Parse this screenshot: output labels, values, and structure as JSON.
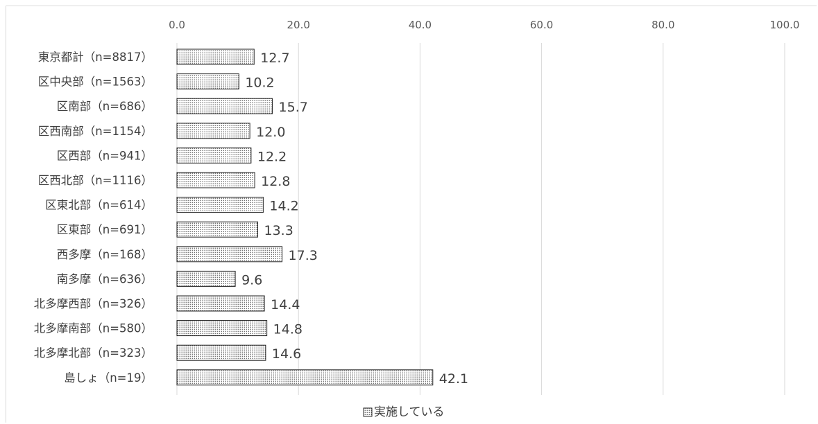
{
  "chart_data": {
    "type": "bar",
    "orientation": "horizontal",
    "categories": [
      "東京都計（n=8817）",
      "区中央部（n=1563）",
      "区南部（n=686）",
      "区西南部（n=1154）",
      "区西部（n=941）",
      "区西北部（n=1116）",
      "区東北部（n=614）",
      "区東部（n=691）",
      "西多摩（n=168）",
      "南多摩（n=636）",
      "北多摩西部（n=326）",
      "北多摩南部（n=580）",
      "北多摩北部（n=323）",
      "島しょ（n=19）"
    ],
    "series": [
      {
        "name": "実施している",
        "values": [
          12.7,
          10.2,
          15.7,
          12.0,
          12.2,
          12.8,
          14.2,
          13.3,
          17.3,
          9.6,
          14.4,
          14.8,
          14.6,
          42.1
        ],
        "labels": [
          "12.7",
          "10.2",
          "15.7",
          "12.0",
          "12.2",
          "12.8",
          "14.2",
          "13.3",
          "17.3",
          "9.6",
          "14.4",
          "14.8",
          "14.6",
          "42.1"
        ]
      }
    ],
    "xlim": [
      0,
      100
    ],
    "ticks": [
      0,
      20,
      40,
      60,
      80,
      100
    ],
    "tick_labels": [
      "0.0",
      "20.0",
      "40.0",
      "60.0",
      "80.0",
      "100.0"
    ],
    "axis_position": "top",
    "grid": true,
    "legend_position": "bottom",
    "bar_pattern": "dotted",
    "colors": {
      "bar_fill": "#ffffff",
      "bar_dots": "#555555",
      "bar_stroke": "#222222",
      "grid": "#d9d9d9",
      "text": "#404040"
    }
  }
}
